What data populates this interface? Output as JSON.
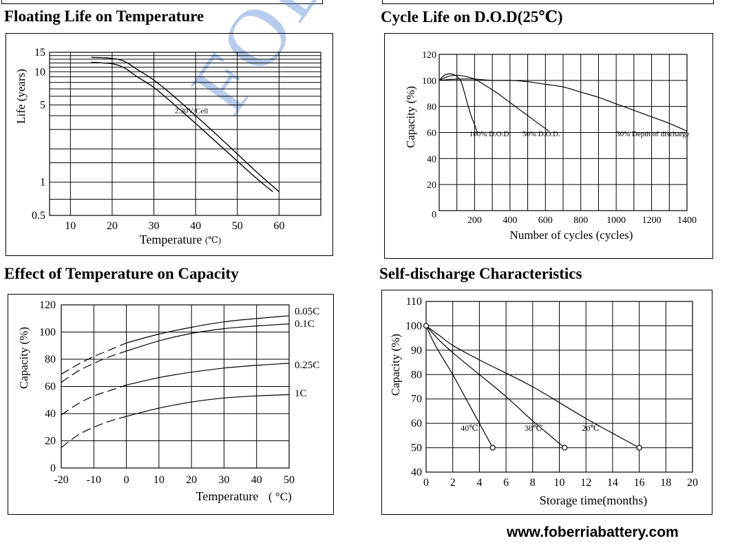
{
  "watermark": "FOBERIA",
  "footer": {
    "url": "www.foberriabattery.com"
  },
  "chart_data": [
    {
      "id": "floating",
      "type": "line",
      "title": "Floating Life on Temperature",
      "xlabel": "Temperature",
      "xunit": "(℃)",
      "ylabel": "Life (years)",
      "xlim": [
        5,
        70
      ],
      "ylim": [
        0.5,
        15
      ],
      "yscale": "log",
      "xticks": [
        10,
        20,
        30,
        40,
        50,
        60
      ],
      "yticks": [
        {
          "v": 0.5,
          "label": "0.5"
        },
        {
          "v": 1,
          "label": "1"
        },
        {
          "v": 5,
          "label": "5"
        },
        {
          "v": 10,
          "label": "10"
        },
        {
          "v": 15,
          "label": "15"
        }
      ],
      "grid": true,
      "annotations": [
        {
          "text": "2.30V/Cell",
          "x": 35,
          "y": 4.2
        }
      ],
      "series": [
        {
          "points": [
            [
              15,
              13.5
            ],
            [
              20,
              13.2
            ],
            [
              23,
              12.4
            ],
            [
              26,
              10.5
            ],
            [
              30,
              8.4
            ],
            [
              35,
              5.9
            ],
            [
              40,
              4.0
            ],
            [
              45,
              2.7
            ],
            [
              50,
              1.8
            ],
            [
              55,
              1.2
            ],
            [
              60,
              0.82
            ]
          ]
        },
        {
          "points": [
            [
              15,
              12.2
            ],
            [
              20,
              11.8
            ],
            [
              23,
              10.8
            ],
            [
              26,
              9.0
            ],
            [
              30,
              7.2
            ],
            [
              35,
              5.0
            ],
            [
              40,
              3.4
            ],
            [
              45,
              2.3
            ],
            [
              50,
              1.55
            ],
            [
              55,
              1.05
            ],
            [
              58.5,
              0.82
            ]
          ]
        }
      ]
    },
    {
      "id": "cycle",
      "type": "line",
      "title": "Cycle Life on D.O.D(25℃)",
      "xlabel": "Number of cycles (cycles)",
      "ylabel": "Capacity (%)",
      "xlim": [
        0,
        1400
      ],
      "ylim": [
        0,
        120
      ],
      "xticks": [
        200,
        400,
        600,
        800,
        1000,
        1200,
        1400
      ],
      "yticks": [
        0,
        20,
        40,
        60,
        80,
        100,
        120
      ],
      "grid": true,
      "series": [
        {
          "name": "100% D.O.D.",
          "points": [
            [
              0,
              100
            ],
            [
              30,
              104
            ],
            [
              60,
              105
            ],
            [
              90,
              104
            ],
            [
              120,
              100
            ],
            [
              140,
              92
            ],
            [
              160,
              82
            ],
            [
              180,
              73
            ],
            [
              200,
              66
            ],
            [
              215,
              60
            ]
          ],
          "label_at": [
            170,
            57
          ]
        },
        {
          "name": "50% D.O.D.",
          "points": [
            [
              0,
              100
            ],
            [
              50,
              103
            ],
            [
              100,
              104
            ],
            [
              150,
              103
            ],
            [
              200,
              101
            ],
            [
              250,
              97
            ],
            [
              320,
              91
            ],
            [
              400,
              83
            ],
            [
              480,
              75
            ],
            [
              560,
              67
            ],
            [
              620,
              61
            ]
          ],
          "label_at": [
            470,
            57
          ]
        },
        {
          "name": "30% Depth of discharge",
          "points": [
            [
              0,
              100
            ],
            [
              100,
              101
            ],
            [
              200,
              101
            ],
            [
              300,
              100
            ],
            [
              400,
              100
            ],
            [
              500,
              99
            ],
            [
              600,
              97
            ],
            [
              700,
              95
            ],
            [
              800,
              91
            ],
            [
              900,
              87
            ],
            [
              1000,
              82
            ],
            [
              1100,
              77
            ],
            [
              1200,
              72
            ],
            [
              1300,
              67
            ],
            [
              1400,
              61
            ]
          ],
          "label_at": [
            1000,
            57
          ]
        }
      ]
    },
    {
      "id": "temp_capacity",
      "type": "line",
      "title": "Effect of Temperature on Capacity",
      "xlabel": "Temperature",
      "xunit": "( °C)",
      "ylabel": "Capacity (%)",
      "xlim": [
        -20,
        50
      ],
      "ylim": [
        0,
        120
      ],
      "xticks": [
        -20,
        -10,
        0,
        10,
        20,
        30,
        40,
        50
      ],
      "yticks": [
        0,
        20,
        40,
        60,
        80,
        100,
        120
      ],
      "grid": true,
      "dash_below": 0,
      "series": [
        {
          "name": "0.05C",
          "points": [
            [
              -20,
              69
            ],
            [
              -15,
              76
            ],
            [
              -10,
              82
            ],
            [
              -5,
              87
            ],
            [
              0,
              92
            ],
            [
              10,
              98.5
            ],
            [
              20,
              103.5
            ],
            [
              30,
              107.5
            ],
            [
              40,
              110
            ],
            [
              50,
              112
            ]
          ]
        },
        {
          "name": "0.1C",
          "points": [
            [
              -20,
              63
            ],
            [
              -15,
              71
            ],
            [
              -10,
              77
            ],
            [
              -5,
              82
            ],
            [
              0,
              86
            ],
            [
              10,
              93.5
            ],
            [
              20,
              99
            ],
            [
              30,
              102.5
            ],
            [
              40,
              104.5
            ],
            [
              50,
              106
            ]
          ]
        },
        {
          "name": "0.25C",
          "points": [
            [
              -20,
              39
            ],
            [
              -15,
              47
            ],
            [
              -10,
              53
            ],
            [
              -5,
              57
            ],
            [
              0,
              61
            ],
            [
              10,
              66.5
            ],
            [
              20,
              70.5
            ],
            [
              30,
              73.5
            ],
            [
              40,
              75.5
            ],
            [
              50,
              77
            ]
          ]
        },
        {
          "name": "1C",
          "points": [
            [
              -20,
              15
            ],
            [
              -15,
              24
            ],
            [
              -10,
              30
            ],
            [
              -5,
              34.5
            ],
            [
              0,
              38
            ],
            [
              10,
              44
            ],
            [
              20,
              48.5
            ],
            [
              30,
              51.5
            ],
            [
              40,
              53
            ],
            [
              50,
              54
            ]
          ]
        }
      ]
    },
    {
      "id": "self_discharge",
      "type": "line",
      "title": "Self-discharge Characteristics",
      "xlabel": "Storage time(months)",
      "ylabel": "Capacity (%)",
      "xlim": [
        0,
        20
      ],
      "ylim": [
        40,
        110
      ],
      "xticks": [
        0,
        2,
        4,
        6,
        8,
        10,
        12,
        14,
        16,
        18,
        20
      ],
      "yticks": [
        40,
        50,
        60,
        70,
        80,
        90,
        100,
        110
      ],
      "grid": true,
      "series": [
        {
          "name": "40℃",
          "points": [
            [
              0,
              100
            ],
            [
              0.5,
              94
            ],
            [
              1,
              89
            ],
            [
              2,
              80
            ],
            [
              3,
              70
            ],
            [
              4,
              60
            ],
            [
              5,
              50
            ]
          ],
          "label_at": [
            2.6,
            57
          ]
        },
        {
          "name": "30℃",
          "points": [
            [
              0,
              100
            ],
            [
              1,
              94
            ],
            [
              2,
              89
            ],
            [
              4,
              80
            ],
            [
              6,
              71
            ],
            [
              8,
              61
            ],
            [
              10.4,
              50
            ]
          ],
          "label_at": [
            7.4,
            57
          ]
        },
        {
          "name": "20℃",
          "points": [
            [
              0,
              100
            ],
            [
              1,
              96
            ],
            [
              2,
              92
            ],
            [
              4,
              86
            ],
            [
              8,
              75
            ],
            [
              12,
              62
            ],
            [
              16,
              50
            ]
          ],
          "label_at": [
            11.7,
            57
          ]
        }
      ],
      "markers": [
        [
          0,
          100
        ],
        [
          5,
          50
        ],
        [
          10.4,
          50
        ],
        [
          16,
          50
        ]
      ]
    }
  ]
}
